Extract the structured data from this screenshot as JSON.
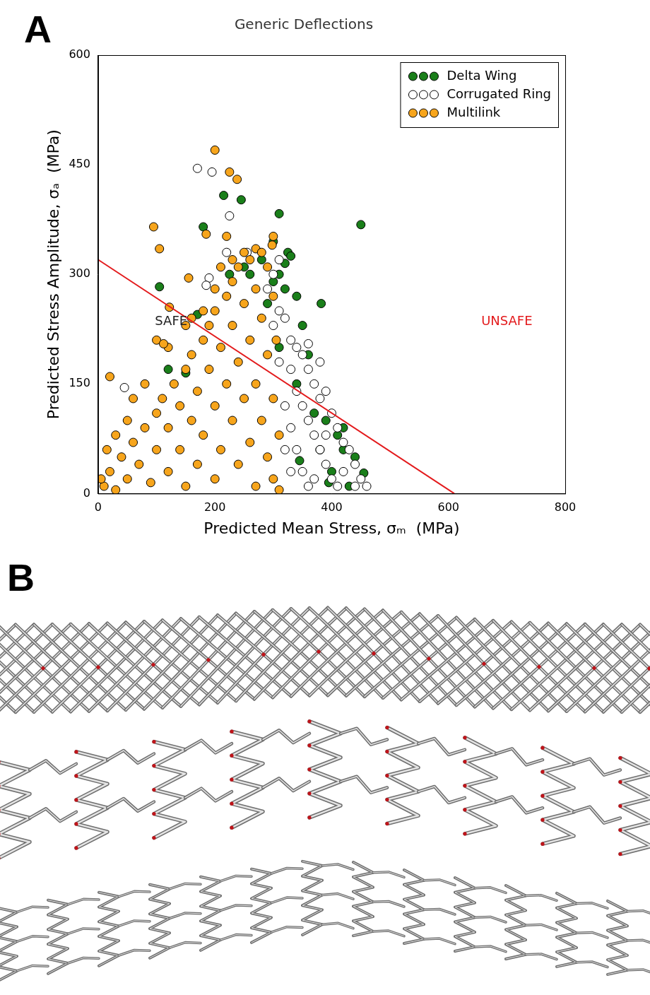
{
  "chart_data": {
    "type": "scatter",
    "panel_label": "A",
    "title": "Generic Deflections",
    "x_label": "Predicted Mean Stress, σₘ  (MPa)",
    "y_label": "Predicted Stress Amplitude, σₐ  (MPa)",
    "xlim": [
      0,
      800
    ],
    "xticks": [
      0,
      200,
      400,
      600,
      800
    ],
    "ylim": [
      0,
      600
    ],
    "yticks": [
      0,
      150,
      300,
      450,
      600
    ],
    "grid": false,
    "legend": "upper right",
    "marker": "circle",
    "series": [
      {
        "name": "Delta Wing",
        "color": "#1a7f1a",
        "x": [
          215,
          245,
          310,
          450,
          180,
          105,
          382,
          325,
          320,
          300,
          330,
          310,
          280,
          260,
          170,
          150,
          120,
          320,
          340,
          300,
          360,
          410,
          420,
          440,
          455,
          430,
          400,
          380,
          370,
          390,
          350,
          340,
          310,
          345,
          395,
          420,
          250,
          290,
          225
        ],
        "values": [
          408,
          402,
          383,
          368,
          365,
          283,
          260,
          330,
          315,
          345,
          325,
          300,
          320,
          300,
          245,
          165,
          170,
          280,
          270,
          290,
          190,
          80,
          60,
          50,
          28,
          10,
          30,
          60,
          110,
          100,
          230,
          150,
          200,
          45,
          15,
          90,
          310,
          260,
          300
        ]
      },
      {
        "name": "Corrugated Ring",
        "color": "#ffffff",
        "x": [
          170,
          195,
          225,
          190,
          185,
          45,
          255,
          220,
          310,
          320,
          330,
          340,
          350,
          360,
          360,
          370,
          380,
          390,
          400,
          410,
          420,
          430,
          440,
          450,
          460,
          330,
          340,
          350,
          360,
          370,
          380,
          390,
          400,
          410,
          320,
          330,
          340,
          350,
          360,
          310,
          320,
          300,
          380,
          390,
          420,
          440,
          330,
          370,
          300,
          310,
          290
        ],
        "values": [
          445,
          440,
          380,
          295,
          285,
          145,
          330,
          330,
          250,
          240,
          210,
          200,
          190,
          205,
          170,
          150,
          130,
          140,
          110,
          90,
          70,
          60,
          40,
          20,
          10,
          170,
          140,
          120,
          100,
          80,
          60,
          40,
          20,
          10,
          120,
          90,
          60,
          30,
          10,
          180,
          60,
          230,
          180,
          80,
          30,
          10,
          30,
          20,
          300,
          320,
          280
        ]
      },
      {
        "name": "Multilink",
        "color": "#f7a51c",
        "x": [
          10,
          20,
          30,
          40,
          50,
          60,
          70,
          80,
          90,
          100,
          100,
          110,
          120,
          120,
          130,
          140,
          140,
          150,
          150,
          160,
          160,
          170,
          170,
          180,
          180,
          190,
          190,
          200,
          200,
          200,
          210,
          210,
          220,
          220,
          230,
          230,
          230,
          240,
          240,
          240,
          250,
          250,
          250,
          260,
          260,
          260,
          270,
          270,
          270,
          270,
          280,
          280,
          280,
          290,
          290,
          290,
          300,
          300,
          300,
          305,
          310,
          310,
          60,
          80,
          120,
          150,
          180,
          200,
          160,
          30,
          50,
          15,
          5,
          210,
          230,
          200,
          225,
          238,
          95,
          105,
          155,
          122,
          100,
          112,
          20,
          300,
          298,
          220,
          185
        ],
        "values": [
          10,
          30,
          5,
          50,
          20,
          70,
          40,
          90,
          15,
          110,
          60,
          130,
          30,
          90,
          150,
          60,
          120,
          170,
          10,
          100,
          190,
          140,
          40,
          210,
          80,
          170,
          230,
          120,
          20,
          250,
          200,
          60,
          270,
          150,
          100,
          290,
          230,
          310,
          180,
          40,
          330,
          260,
          130,
          320,
          210,
          70,
          335,
          280,
          150,
          10,
          330,
          240,
          100,
          310,
          190,
          50,
          270,
          130,
          20,
          210,
          80,
          5,
          130,
          150,
          200,
          230,
          250,
          280,
          240,
          80,
          100,
          60,
          20,
          310,
          320,
          470,
          440,
          430,
          365,
          335,
          295,
          255,
          210,
          205,
          160,
          352,
          340,
          352,
          355
        ]
      }
    ],
    "limit_line": {
      "x": [
        0,
        610
      ],
      "y": [
        320,
        0
      ],
      "color": "#e31a1c"
    },
    "annotations": [
      {
        "text": "SAFE",
        "x": 125,
        "y": 235,
        "color": "#222222"
      },
      {
        "text": "UNSAFE",
        "x": 700,
        "y": 235,
        "color": "#e31a1c"
      }
    ]
  },
  "panel_b": {
    "panel_label": "B",
    "stent_count": 3
  }
}
